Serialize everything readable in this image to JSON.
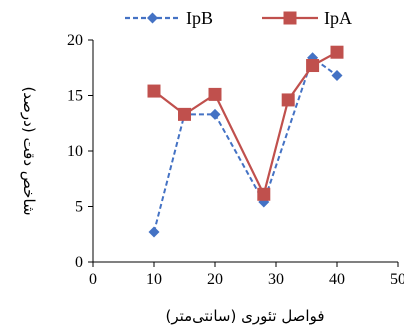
{
  "chart_data": {
    "type": "line",
    "xlabel": "فواصل تئوری (سانتی‌متر)",
    "ylabel": "شاخص دقت (درصد)",
    "xlim": [
      0,
      50
    ],
    "ylim": [
      0,
      20
    ],
    "xticks": [
      0,
      10,
      20,
      30,
      40,
      50
    ],
    "yticks": [
      0,
      5,
      10,
      15,
      20
    ],
    "grid": false,
    "legend_position": "top",
    "series": [
      {
        "name": "IpB",
        "style": "dashed",
        "marker": "diamond",
        "color": "#4472C4",
        "x": [
          10,
          15,
          20,
          28,
          36,
          40
        ],
        "y": [
          2.7,
          13.3,
          13.3,
          5.4,
          18.4,
          16.8
        ]
      },
      {
        "name": "IpA",
        "style": "solid",
        "marker": "square",
        "color": "#C0504D",
        "x": [
          10,
          15,
          20,
          28,
          32,
          36,
          40
        ],
        "y": [
          15.4,
          13.3,
          15.1,
          6.1,
          14.6,
          17.7,
          18.9
        ]
      }
    ]
  }
}
